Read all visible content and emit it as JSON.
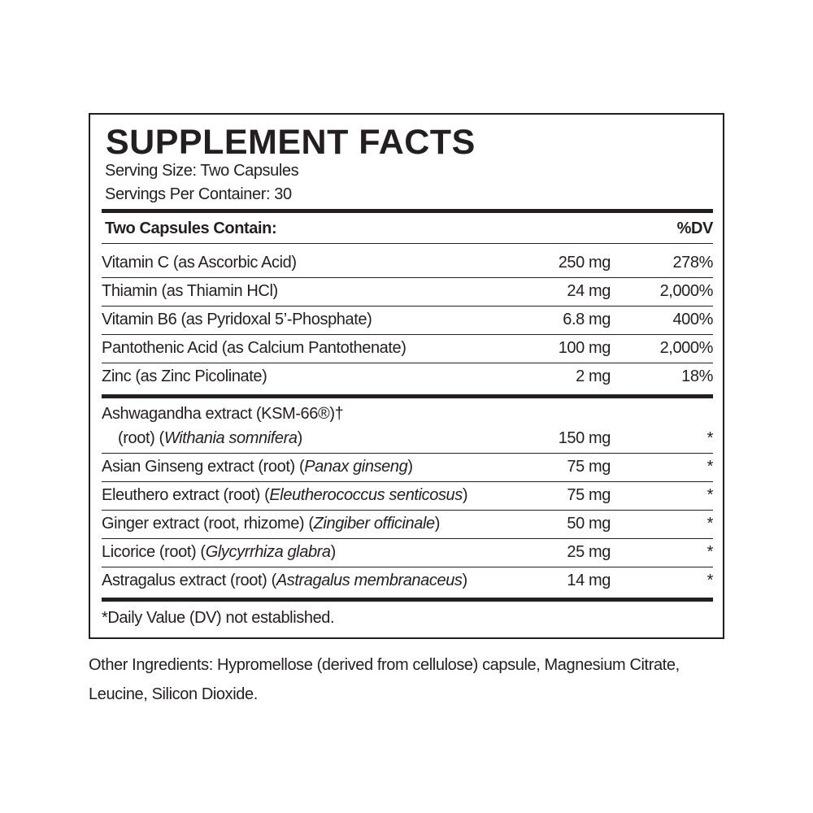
{
  "title": "SUPPLEMENT FACTS",
  "serving_size": "Serving Size: Two Capsules",
  "servings_per_container": "Servings Per Container: 30",
  "header": {
    "label": "Two Capsules Contain:",
    "dv": "%DV"
  },
  "vitamins": [
    {
      "name": "Vitamin C (as Ascorbic Acid)",
      "amount": "250 mg",
      "dv": "278%"
    },
    {
      "name": "Thiamin (as Thiamin HCl)",
      "amount": "24 mg",
      "dv": "2,000%"
    },
    {
      "name": "Vitamin B6 (as Pyridoxal 5’-Phosphate)",
      "amount": "6.8 mg",
      "dv": "400%"
    },
    {
      "name": "Pantothenic Acid (as Calcium Pantothenate)",
      "amount": "100 mg",
      "dv": "2,000%"
    },
    {
      "name": "Zinc (as Zinc Picolinate)",
      "amount": "2 mg",
      "dv": "18%"
    }
  ],
  "herbs": [
    {
      "name": "Ashwagandha extract (KSM-66®)†",
      "name2": "(root) (",
      "latin": "Withania somnifera",
      "close": ")",
      "amount": "150 mg",
      "dv": "*"
    },
    {
      "name": "Asian Ginseng extract (root) (",
      "latin": "Panax ginseng",
      "close": ")",
      "amount": "75 mg",
      "dv": "*"
    },
    {
      "name": "Eleuthero extract (root) (",
      "latin": "Eleutherococcus senticosus",
      "close": ")",
      "amount": "75 mg",
      "dv": "*"
    },
    {
      "name": "Ginger extract (root, rhizome) (",
      "latin": "Zingiber officinale",
      "close": ")",
      "amount": "50 mg",
      "dv": "*"
    },
    {
      "name": "Licorice (root) (",
      "latin": "Glycyrrhiza glabra",
      "close": ")",
      "amount": "25 mg",
      "dv": "*"
    },
    {
      "name": "Astragalus extract (root) (",
      "latin": "Astragalus membranaceus",
      "close": ")",
      "amount": "14 mg",
      "dv": "*"
    }
  ],
  "footnote": "*Daily Value (DV) not established.",
  "other_ingredients": "Other Ingredients: Hypromellose (derived from cellulose) capsule, Magnesium Citrate, Leucine, Silicon Dioxide."
}
